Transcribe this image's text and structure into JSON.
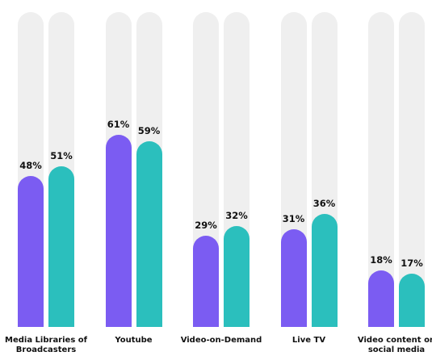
{
  "chart_data": {
    "type": "bar",
    "categories": [
      "Media Libraries of Broadcasters",
      "Youtube",
      "Video-on-Demand",
      "Live TV",
      "Video content on social media"
    ],
    "series": [
      {
        "color": "#7b5cf2",
        "values": [
          48,
          61,
          29,
          31,
          18
        ],
        "value_labels": [
          "48%",
          "61%",
          "29%",
          "31%",
          "18%"
        ]
      },
      {
        "color": "#2bbfbd",
        "values": [
          51,
          59,
          32,
          36,
          17
        ],
        "value_labels": [
          "51%",
          "59%",
          "32%",
          "36%",
          "17%"
        ]
      }
    ],
    "ylim": [
      0,
      100
    ]
  }
}
